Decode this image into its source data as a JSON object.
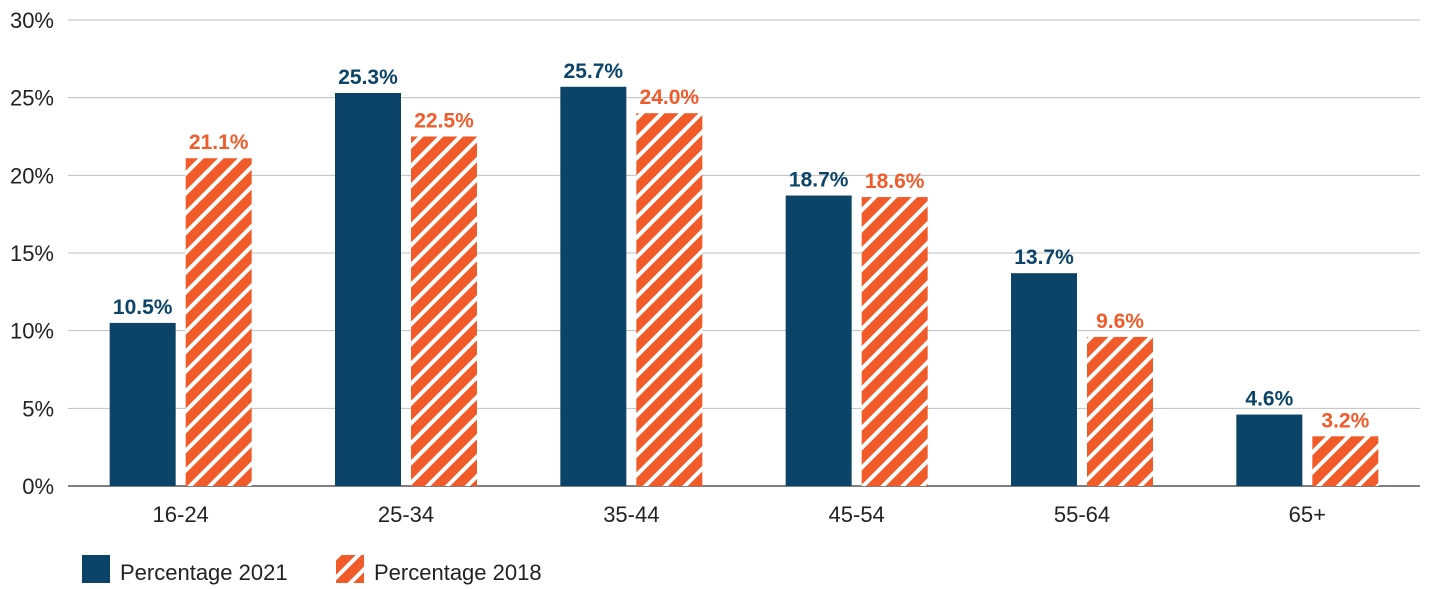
{
  "chart_data": {
    "type": "bar",
    "title": "",
    "xlabel": "",
    "ylabel": "",
    "categories": [
      "16-24",
      "25-34",
      "35-44",
      "45-54",
      "55-64",
      "65+"
    ],
    "series": [
      {
        "name": "Percentage 2021",
        "values": [
          10.5,
          25.3,
          25.7,
          18.7,
          13.7,
          4.6
        ],
        "labels": [
          "10.5%",
          "25.3%",
          "25.7%",
          "18.7%",
          "13.7%",
          "4.6%"
        ],
        "color": "#0b4468",
        "fill": "solid"
      },
      {
        "name": "Percentage 2018",
        "values": [
          21.1,
          22.5,
          24.0,
          18.6,
          9.6,
          3.2
        ],
        "labels": [
          "21.1%",
          "22.5%",
          "24.0%",
          "18.6%",
          "9.6%",
          "3.2%"
        ],
        "color": "#f15a29",
        "fill": "hatched"
      }
    ],
    "ylim": [
      0,
      30
    ],
    "yticks": [
      0,
      5,
      10,
      15,
      20,
      25,
      30
    ],
    "ytick_labels": [
      "0%",
      "5%",
      "10%",
      "15%",
      "20%",
      "25%",
      "30%"
    ],
    "grid": "horizontal",
    "legend": "bottom-left"
  }
}
